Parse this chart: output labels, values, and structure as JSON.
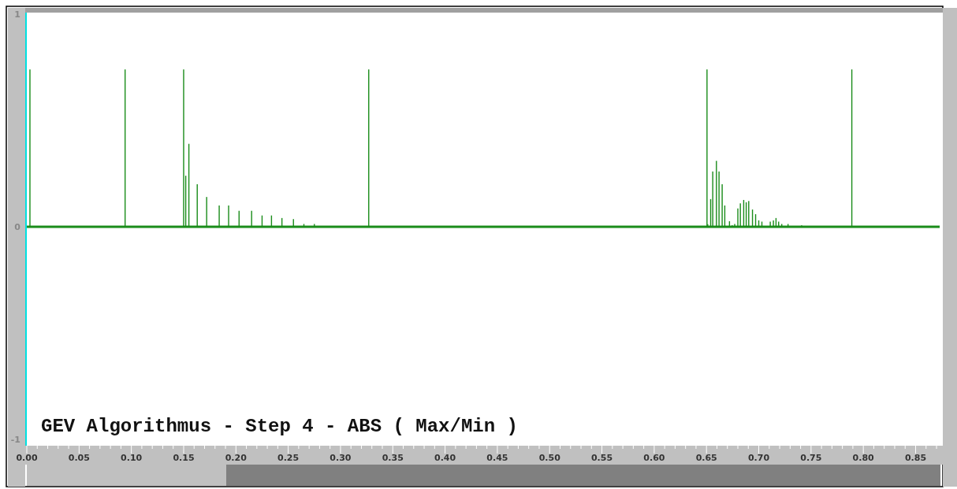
{
  "chart_data": {
    "type": "bar",
    "title": "GEV Algorithmus - Step 4 - ABS ( Max/Min )",
    "x": [
      0.003,
      0.094,
      0.15,
      0.152,
      0.155,
      0.163,
      0.172,
      0.184,
      0.193,
      0.203,
      0.215,
      0.225,
      0.234,
      0.244,
      0.255,
      0.265,
      0.275,
      0.327,
      0.6505,
      0.6512,
      0.654,
      0.656,
      0.6595,
      0.662,
      0.665,
      0.6675,
      0.672,
      0.6746,
      0.677,
      0.68,
      0.6824,
      0.6856,
      0.688,
      0.6904,
      0.694,
      0.697,
      0.7,
      0.703,
      0.711,
      0.714,
      0.7165,
      0.719,
      0.722,
      0.728,
      0.741,
      0.789
    ],
    "values": [
      0.74,
      0.74,
      0.74,
      0.24,
      0.39,
      0.2,
      0.14,
      0.1,
      0.1,
      0.075,
      0.075,
      0.053,
      0.053,
      0.041,
      0.036,
      0.013,
      0.013,
      0.74,
      0.74,
      0.012,
      0.13,
      0.26,
      0.31,
      0.26,
      0.2,
      0.1,
      0.026,
      0.007,
      0.013,
      0.086,
      0.11,
      0.126,
      0.115,
      0.121,
      0.081,
      0.059,
      0.03,
      0.024,
      0.024,
      0.03,
      0.041,
      0.024,
      0.013,
      0.013,
      0.007,
      0.74
    ],
    "color": "#1a8c1a",
    "xlim": [
      0,
      0.873
    ],
    "ylim": [
      -1.03,
      1
    ],
    "yticks": [
      -1,
      0,
      1
    ],
    "ref_lines": [
      {
        "axis": "y",
        "value": 0,
        "color": "#1a8c1a"
      }
    ],
    "xticks": [
      {
        "value": 0,
        "label": "0.00"
      },
      {
        "value": 0.01,
        "label": null
      },
      {
        "value": 0.02,
        "label": null
      },
      {
        "value": 0.03,
        "label": null
      },
      {
        "value": 0.04,
        "label": null
      },
      {
        "value": 0.05,
        "label": "0.05"
      },
      {
        "value": 0.06,
        "label": null
      },
      {
        "value": 0.07,
        "label": null
      },
      {
        "value": 0.08,
        "label": null
      },
      {
        "value": 0.09,
        "label": null
      },
      {
        "value": 0.1,
        "label": "0.10"
      },
      {
        "value": 0.11,
        "label": null
      },
      {
        "value": 0.12,
        "label": null
      },
      {
        "value": 0.13,
        "label": null
      },
      {
        "value": 0.14,
        "label": null
      },
      {
        "value": 0.15,
        "label": "0.15"
      },
      {
        "value": 0.16,
        "label": null
      },
      {
        "value": 0.17,
        "label": null
      },
      {
        "value": 0.18,
        "label": null
      },
      {
        "value": 0.19,
        "label": null
      },
      {
        "value": 0.2,
        "label": "0.20"
      },
      {
        "value": 0.21,
        "label": null
      },
      {
        "value": 0.22,
        "label": null
      },
      {
        "value": 0.23,
        "label": null
      },
      {
        "value": 0.24,
        "label": null
      },
      {
        "value": 0.25,
        "label": "0.25"
      },
      {
        "value": 0.26,
        "label": null
      },
      {
        "value": 0.27,
        "label": null
      },
      {
        "value": 0.28,
        "label": null
      },
      {
        "value": 0.29,
        "label": null
      },
      {
        "value": 0.3,
        "label": "0.30"
      },
      {
        "value": 0.31,
        "label": null
      },
      {
        "value": 0.32,
        "label": null
      },
      {
        "value": 0.33,
        "label": null
      },
      {
        "value": 0.34,
        "label": null
      },
      {
        "value": 0.35,
        "label": "0.35"
      },
      {
        "value": 0.36,
        "label": null
      },
      {
        "value": 0.37,
        "label": null
      },
      {
        "value": 0.38,
        "label": null
      },
      {
        "value": 0.39,
        "label": null
      },
      {
        "value": 0.4,
        "label": "0.40"
      },
      {
        "value": 0.41,
        "label": null
      },
      {
        "value": 0.42,
        "label": null
      },
      {
        "value": 0.43,
        "label": null
      },
      {
        "value": 0.44,
        "label": null
      },
      {
        "value": 0.45,
        "label": "0.45"
      },
      {
        "value": 0.46,
        "label": null
      },
      {
        "value": 0.47,
        "label": null
      },
      {
        "value": 0.48,
        "label": null
      },
      {
        "value": 0.49,
        "label": null
      },
      {
        "value": 0.5,
        "label": "0.50"
      },
      {
        "value": 0.51,
        "label": null
      },
      {
        "value": 0.52,
        "label": null
      },
      {
        "value": 0.53,
        "label": null
      },
      {
        "value": 0.54,
        "label": null
      },
      {
        "value": 0.55,
        "label": "0.55"
      },
      {
        "value": 0.56,
        "label": null
      },
      {
        "value": 0.57,
        "label": null
      },
      {
        "value": 0.58,
        "label": null
      },
      {
        "value": 0.59,
        "label": null
      },
      {
        "value": 0.6,
        "label": "0.60"
      },
      {
        "value": 0.61,
        "label": null
      },
      {
        "value": 0.62,
        "label": null
      },
      {
        "value": 0.63,
        "label": null
      },
      {
        "value": 0.64,
        "label": null
      },
      {
        "value": 0.65,
        "label": "0.65"
      },
      {
        "value": 0.66,
        "label": null
      },
      {
        "value": 0.67,
        "label": null
      },
      {
        "value": 0.68,
        "label": null
      },
      {
        "value": 0.69,
        "label": null
      },
      {
        "value": 0.7,
        "label": "0.70"
      },
      {
        "value": 0.71,
        "label": null
      },
      {
        "value": 0.72,
        "label": null
      },
      {
        "value": 0.73,
        "label": null
      },
      {
        "value": 0.74,
        "label": null
      },
      {
        "value": 0.75,
        "label": "0.75"
      },
      {
        "value": 0.76,
        "label": null
      },
      {
        "value": 0.77,
        "label": null
      },
      {
        "value": 0.78,
        "label": null
      },
      {
        "value": 0.79,
        "label": null
      },
      {
        "value": 0.8,
        "label": "0.80"
      },
      {
        "value": 0.81,
        "label": null
      },
      {
        "value": 0.82,
        "label": null
      },
      {
        "value": 0.83,
        "label": null
      },
      {
        "value": 0.84,
        "label": null
      },
      {
        "value": 0.85,
        "label": "0.85"
      },
      {
        "value": 0.86,
        "label": null
      },
      {
        "value": 0.87,
        "label": null
      }
    ]
  }
}
